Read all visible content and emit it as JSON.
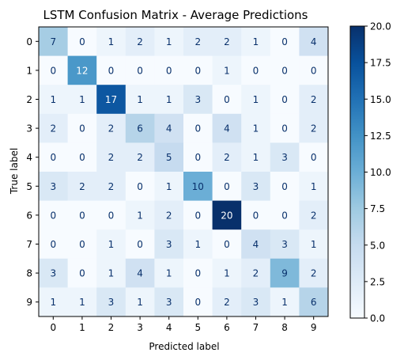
{
  "chart_data": {
    "type": "heatmap",
    "title": "LSTM Confusion Matrix - Average Predictions",
    "xlabel": "Predicted label",
    "ylabel": "True label",
    "x_categories": [
      "0",
      "1",
      "2",
      "3",
      "4",
      "5",
      "6",
      "7",
      "8",
      "9"
    ],
    "y_categories": [
      "0",
      "1",
      "2",
      "3",
      "4",
      "5",
      "6",
      "7",
      "8",
      "9"
    ],
    "values": [
      [
        7,
        0,
        1,
        2,
        1,
        2,
        2,
        1,
        0,
        4
      ],
      [
        0,
        12,
        0,
        0,
        0,
        0,
        1,
        0,
        0,
        0
      ],
      [
        1,
        1,
        17,
        1,
        1,
        3,
        0,
        1,
        0,
        2
      ],
      [
        2,
        0,
        2,
        6,
        4,
        0,
        4,
        1,
        0,
        2
      ],
      [
        0,
        0,
        2,
        2,
        5,
        0,
        2,
        1,
        3,
        0
      ],
      [
        3,
        2,
        2,
        0,
        1,
        10,
        0,
        3,
        0,
        1
      ],
      [
        0,
        0,
        0,
        1,
        2,
        0,
        20,
        0,
        0,
        2
      ],
      [
        0,
        0,
        1,
        0,
        3,
        1,
        0,
        4,
        3,
        1
      ],
      [
        3,
        0,
        1,
        4,
        1,
        0,
        1,
        2,
        9,
        2
      ],
      [
        1,
        1,
        3,
        1,
        3,
        0,
        2,
        3,
        1,
        6
      ]
    ],
    "colormap": "Blues",
    "colormap_low": "#f7fbff",
    "colormap_high": "#08306b",
    "text_color_light": "#ffffff",
    "text_color_dark": "#08306b",
    "vmin": 0,
    "vmax": 20,
    "colorbar_ticks": [
      "0.0",
      "2.5",
      "5.0",
      "7.5",
      "10.0",
      "12.5",
      "15.0",
      "17.5",
      "20.0"
    ],
    "grid": false,
    "colorbar_placement": "right"
  }
}
